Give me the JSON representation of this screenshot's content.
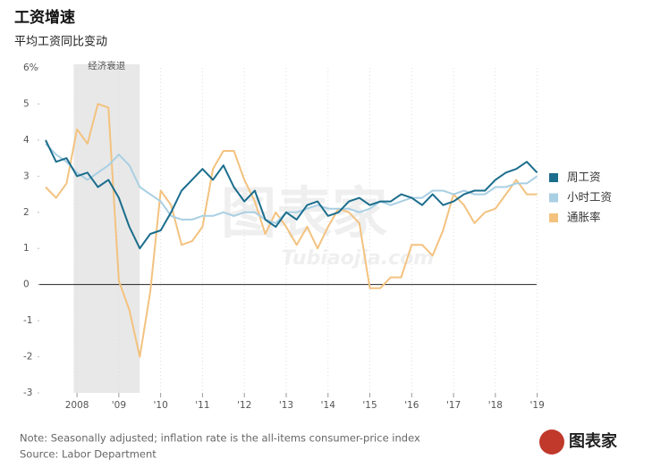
{
  "chart_data": {
    "type": "line",
    "title": "工资增速",
    "subtitle": "平均工资同比变动",
    "note": "Note: Seasonally adjusted; inflation rate is the all-items consumer-price index",
    "source": "Source: Labor Department",
    "recession": {
      "label": "经济衰退",
      "x": [
        2007.92,
        2009.5
      ]
    },
    "watermark": "图表家",
    "watermark_sub": "Tubiaojia.com",
    "logo": "图表家",
    "grid": "x",
    "legend": "right",
    "xlim": [
      2007.1,
      2019.2
    ],
    "xticks": [
      {
        "value": 2008,
        "label": "2008"
      },
      {
        "value": 2009,
        "label": "'09"
      },
      {
        "value": 2010,
        "label": "'10"
      },
      {
        "value": 2011,
        "label": "'11"
      },
      {
        "value": 2012,
        "label": "'12"
      },
      {
        "value": 2013,
        "label": "'13"
      },
      {
        "value": 2014,
        "label": "'14"
      },
      {
        "value": 2015,
        "label": "'15"
      },
      {
        "value": 2016,
        "label": "'16"
      },
      {
        "value": 2017,
        "label": "'17"
      },
      {
        "value": 2018,
        "label": "'18"
      },
      {
        "value": 2019,
        "label": "'19"
      }
    ],
    "ylim": [
      -3,
      6
    ],
    "yticks": [
      {
        "value": 6,
        "label": "6%"
      },
      5,
      4,
      3,
      2,
      1,
      0,
      -1,
      -2,
      -3
    ],
    "x": [
      2007.25,
      2007.5,
      2007.75,
      2008,
      2008.25,
      2008.5,
      2008.75,
      2009,
      2009.25,
      2009.5,
      2009.75,
      2010,
      2010.25,
      2010.5,
      2010.75,
      2011,
      2011.25,
      2011.5,
      2011.75,
      2012,
      2012.25,
      2012.5,
      2012.75,
      2013,
      2013.25,
      2013.5,
      2013.75,
      2014,
      2014.25,
      2014.5,
      2014.75,
      2015,
      2015.25,
      2015.5,
      2015.75,
      2016,
      2016.25,
      2016.5,
      2016.75,
      2017,
      2017.25,
      2017.5,
      2017.75,
      2018,
      2018.25,
      2018.5,
      2018.75,
      2019
    ],
    "series": [
      {
        "name": "通胀率",
        "color": "#f3c27f",
        "values": [
          2.7,
          2.4,
          2.8,
          4.3,
          3.9,
          5.0,
          4.9,
          0.1,
          -0.7,
          -2.0,
          -0.2,
          2.6,
          2.2,
          1.1,
          1.2,
          1.6,
          3.2,
          3.7,
          3.7,
          2.9,
          2.3,
          1.4,
          2.0,
          1.6,
          1.1,
          1.6,
          1.0,
          1.6,
          2.1,
          2.0,
          1.7,
          -0.1,
          -0.1,
          0.2,
          0.2,
          1.1,
          1.1,
          0.8,
          1.5,
          2.5,
          2.2,
          1.7,
          2.0,
          2.1,
          2.5,
          2.9,
          2.5,
          2.5
        ]
      },
      {
        "name": "小时工资",
        "color": "#a9cfe3",
        "values": [
          3.9,
          3.6,
          3.4,
          3.1,
          2.9,
          3.1,
          3.3,
          3.6,
          3.3,
          2.7,
          2.5,
          2.3,
          1.9,
          1.8,
          1.8,
          1.9,
          1.9,
          2.0,
          1.9,
          2.0,
          2.0,
          1.8,
          1.7,
          2.0,
          2.0,
          2.1,
          2.2,
          2.1,
          2.1,
          2.1,
          2.0,
          2.1,
          2.3,
          2.2,
          2.3,
          2.4,
          2.4,
          2.6,
          2.6,
          2.5,
          2.6,
          2.5,
          2.5,
          2.7,
          2.7,
          2.8,
          2.8,
          3.0
        ]
      },
      {
        "name": "周工资",
        "color": "#1b6d8c",
        "values": [
          4.0,
          3.4,
          3.5,
          3.0,
          3.1,
          2.7,
          2.9,
          2.4,
          1.6,
          1.0,
          1.4,
          1.5,
          2.0,
          2.6,
          2.9,
          3.2,
          2.9,
          3.3,
          2.7,
          2.3,
          2.6,
          1.8,
          1.6,
          2.0,
          1.8,
          2.2,
          2.3,
          1.9,
          2.0,
          2.3,
          2.4,
          2.2,
          2.3,
          2.3,
          2.5,
          2.4,
          2.2,
          2.5,
          2.2,
          2.3,
          2.5,
          2.6,
          2.6,
          2.9,
          3.1,
          3.2,
          3.4,
          3.1
        ]
      }
    ]
  }
}
